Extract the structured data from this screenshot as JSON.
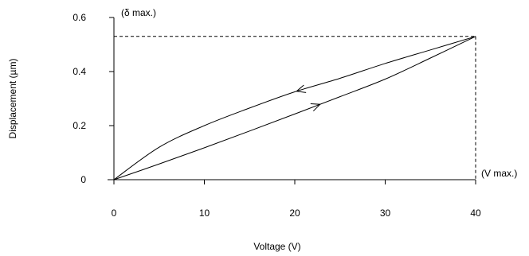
{
  "chart_data": {
    "type": "line",
    "xlabel": "Voltage (V)",
    "ylabel": "Displacement (µm)",
    "xlim": [
      0,
      40
    ],
    "ylim": [
      0,
      0.6
    ],
    "x_ticks": [
      "0",
      "10",
      "20",
      "30",
      "40"
    ],
    "y_ticks": [
      "0",
      "0.2",
      "0.4",
      "0.6"
    ],
    "grid": false,
    "annotations": {
      "delta_max": "(δ max.)",
      "v_max": "(V max.)"
    },
    "max_point": {
      "x": 40,
      "y": 0.53
    },
    "series": [
      {
        "direction": "increasing voltage",
        "x": [
          0,
          5,
          10,
          15,
          20,
          25,
          30,
          35,
          40
        ],
        "y": [
          0,
          0.058,
          0.118,
          0.18,
          0.243,
          0.307,
          0.372,
          0.45,
          0.53
        ]
      },
      {
        "direction": "decreasing voltage",
        "x": [
          40,
          35,
          30,
          25,
          20,
          15,
          10,
          5,
          0
        ],
        "y": [
          0.53,
          0.48,
          0.43,
          0.375,
          0.325,
          0.265,
          0.2,
          0.12,
          0
        ]
      }
    ]
  }
}
